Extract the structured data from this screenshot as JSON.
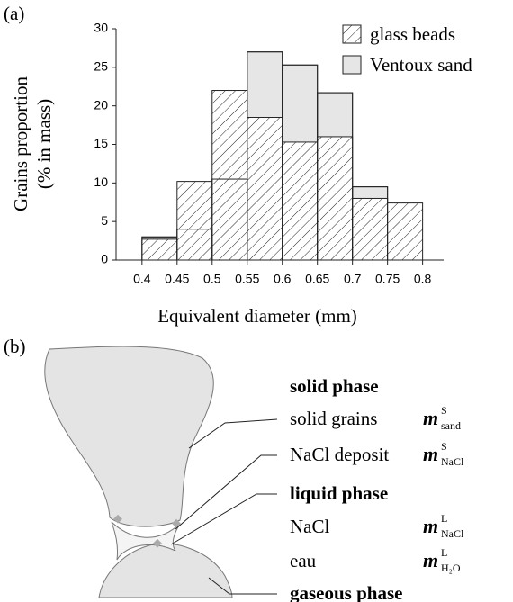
{
  "chart_data": {
    "type": "histogram",
    "panel_label": "(a)",
    "ylabel": [
      "Grains proportion",
      "(% in mass)"
    ],
    "xlabel": "Equivalent diameter  (mm)",
    "bins": [
      0.4,
      0.45,
      0.5,
      0.55,
      0.6,
      0.65,
      0.7,
      0.75,
      0.8
    ],
    "series": [
      {
        "name": "glass beads",
        "color": "#ffffff",
        "hatch": true,
        "values": [
          2.7,
          10.2,
          22,
          18.5,
          15.3,
          16,
          8,
          7.4
        ]
      },
      {
        "name": "Ventoux sand",
        "color": "#e6e6e6",
        "hatch": false,
        "values": [
          3,
          4,
          10.5,
          27,
          25.3,
          21.7,
          9.5,
          0
        ]
      }
    ],
    "xlim": [
      0.363,
      0.83
    ],
    "ylim": [
      0,
      30
    ],
    "xticks": [
      0.4,
      0.45,
      0.5,
      0.55,
      0.6,
      0.65,
      0.7,
      0.75,
      0.8
    ],
    "yticks": [
      0,
      5,
      10,
      15,
      20,
      25,
      30
    ],
    "legend": "upper right"
  },
  "diagram": {
    "panel_label": "(b)",
    "items": [
      {
        "text": "solid phase",
        "bold": true
      },
      {
        "text": "solid grains",
        "bold": false,
        "symbol": {
          "base": "m",
          "sup": "S",
          "sub": "sand"
        }
      },
      {
        "text": "NaCl deposit",
        "bold": false,
        "symbol": {
          "base": "m",
          "sup": "S",
          "sub": "NaCl"
        }
      },
      {
        "text": "liquid phase",
        "bold": true
      },
      {
        "text": "NaCl",
        "bold": false,
        "symbol": {
          "base": "m",
          "sup": "L",
          "sub": "NaCl"
        }
      },
      {
        "text": "eau",
        "bold": false,
        "symbol": {
          "base": "m",
          "sup": "L",
          "sub": "H₂O"
        }
      },
      {
        "text": "gaseous phase",
        "bold": true
      }
    ]
  }
}
